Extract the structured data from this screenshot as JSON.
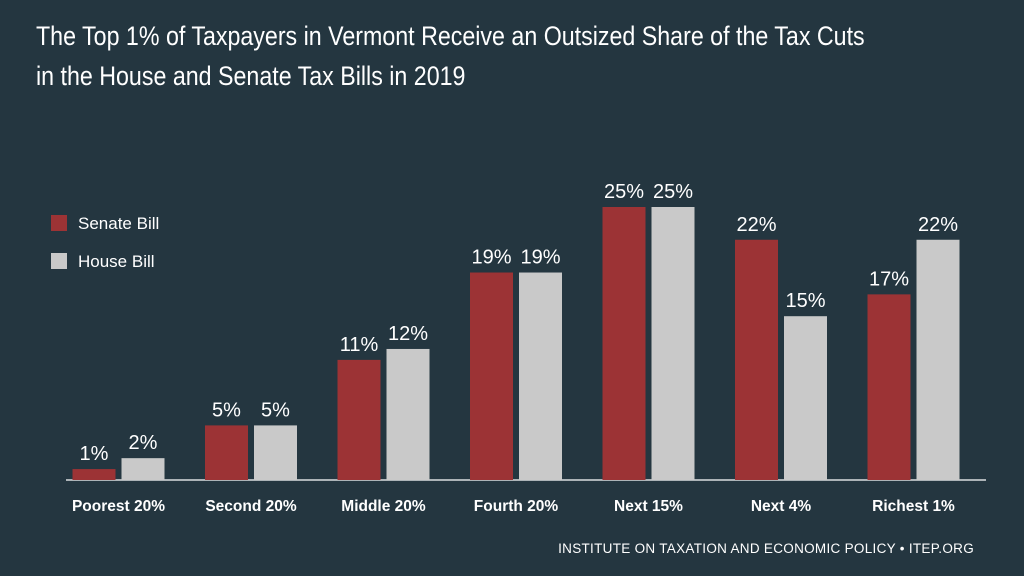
{
  "title": {
    "line1": "The Top 1% of Taxpayers in Vermont Receive an Outsized Share of the Tax Cuts",
    "line2": "in the House and Senate Tax Bills in 2019"
  },
  "source": "INSTITUTE ON TAXATION AND ECONOMIC POLICY • ITEP.ORG",
  "colors": {
    "background": "#243640",
    "senate": "#9c3335",
    "house": "#c9c9c9",
    "text": "#ffffff"
  },
  "chart_data": {
    "type": "bar",
    "title": "The Top 1% of Taxpayers in Vermont Receive an Outsized Share of the Tax Cuts in the House and Senate Tax Bills in 2019",
    "xlabel": "",
    "ylabel": "",
    "ylim": [
      0,
      30
    ],
    "grid": false,
    "legend_position": "top-left",
    "categories": [
      "Poorest 20%",
      "Second 20%",
      "Middle 20%",
      "Fourth 20%",
      "Next 15%",
      "Next 4%",
      "Richest 1%"
    ],
    "series": [
      {
        "name": "Senate Bill",
        "color": "#9c3335",
        "values": [
          1,
          5,
          11,
          19,
          25,
          22,
          17
        ],
        "labels": [
          "1%",
          "5%",
          "11%",
          "19%",
          "25%",
          "22%",
          "17%"
        ]
      },
      {
        "name": "House Bill",
        "color": "#c9c9c9",
        "values": [
          2,
          5,
          12,
          19,
          25,
          15,
          22
        ],
        "labels": [
          "2%",
          "5%",
          "12%",
          "19%",
          "25%",
          "15%",
          "22%"
        ]
      }
    ]
  }
}
